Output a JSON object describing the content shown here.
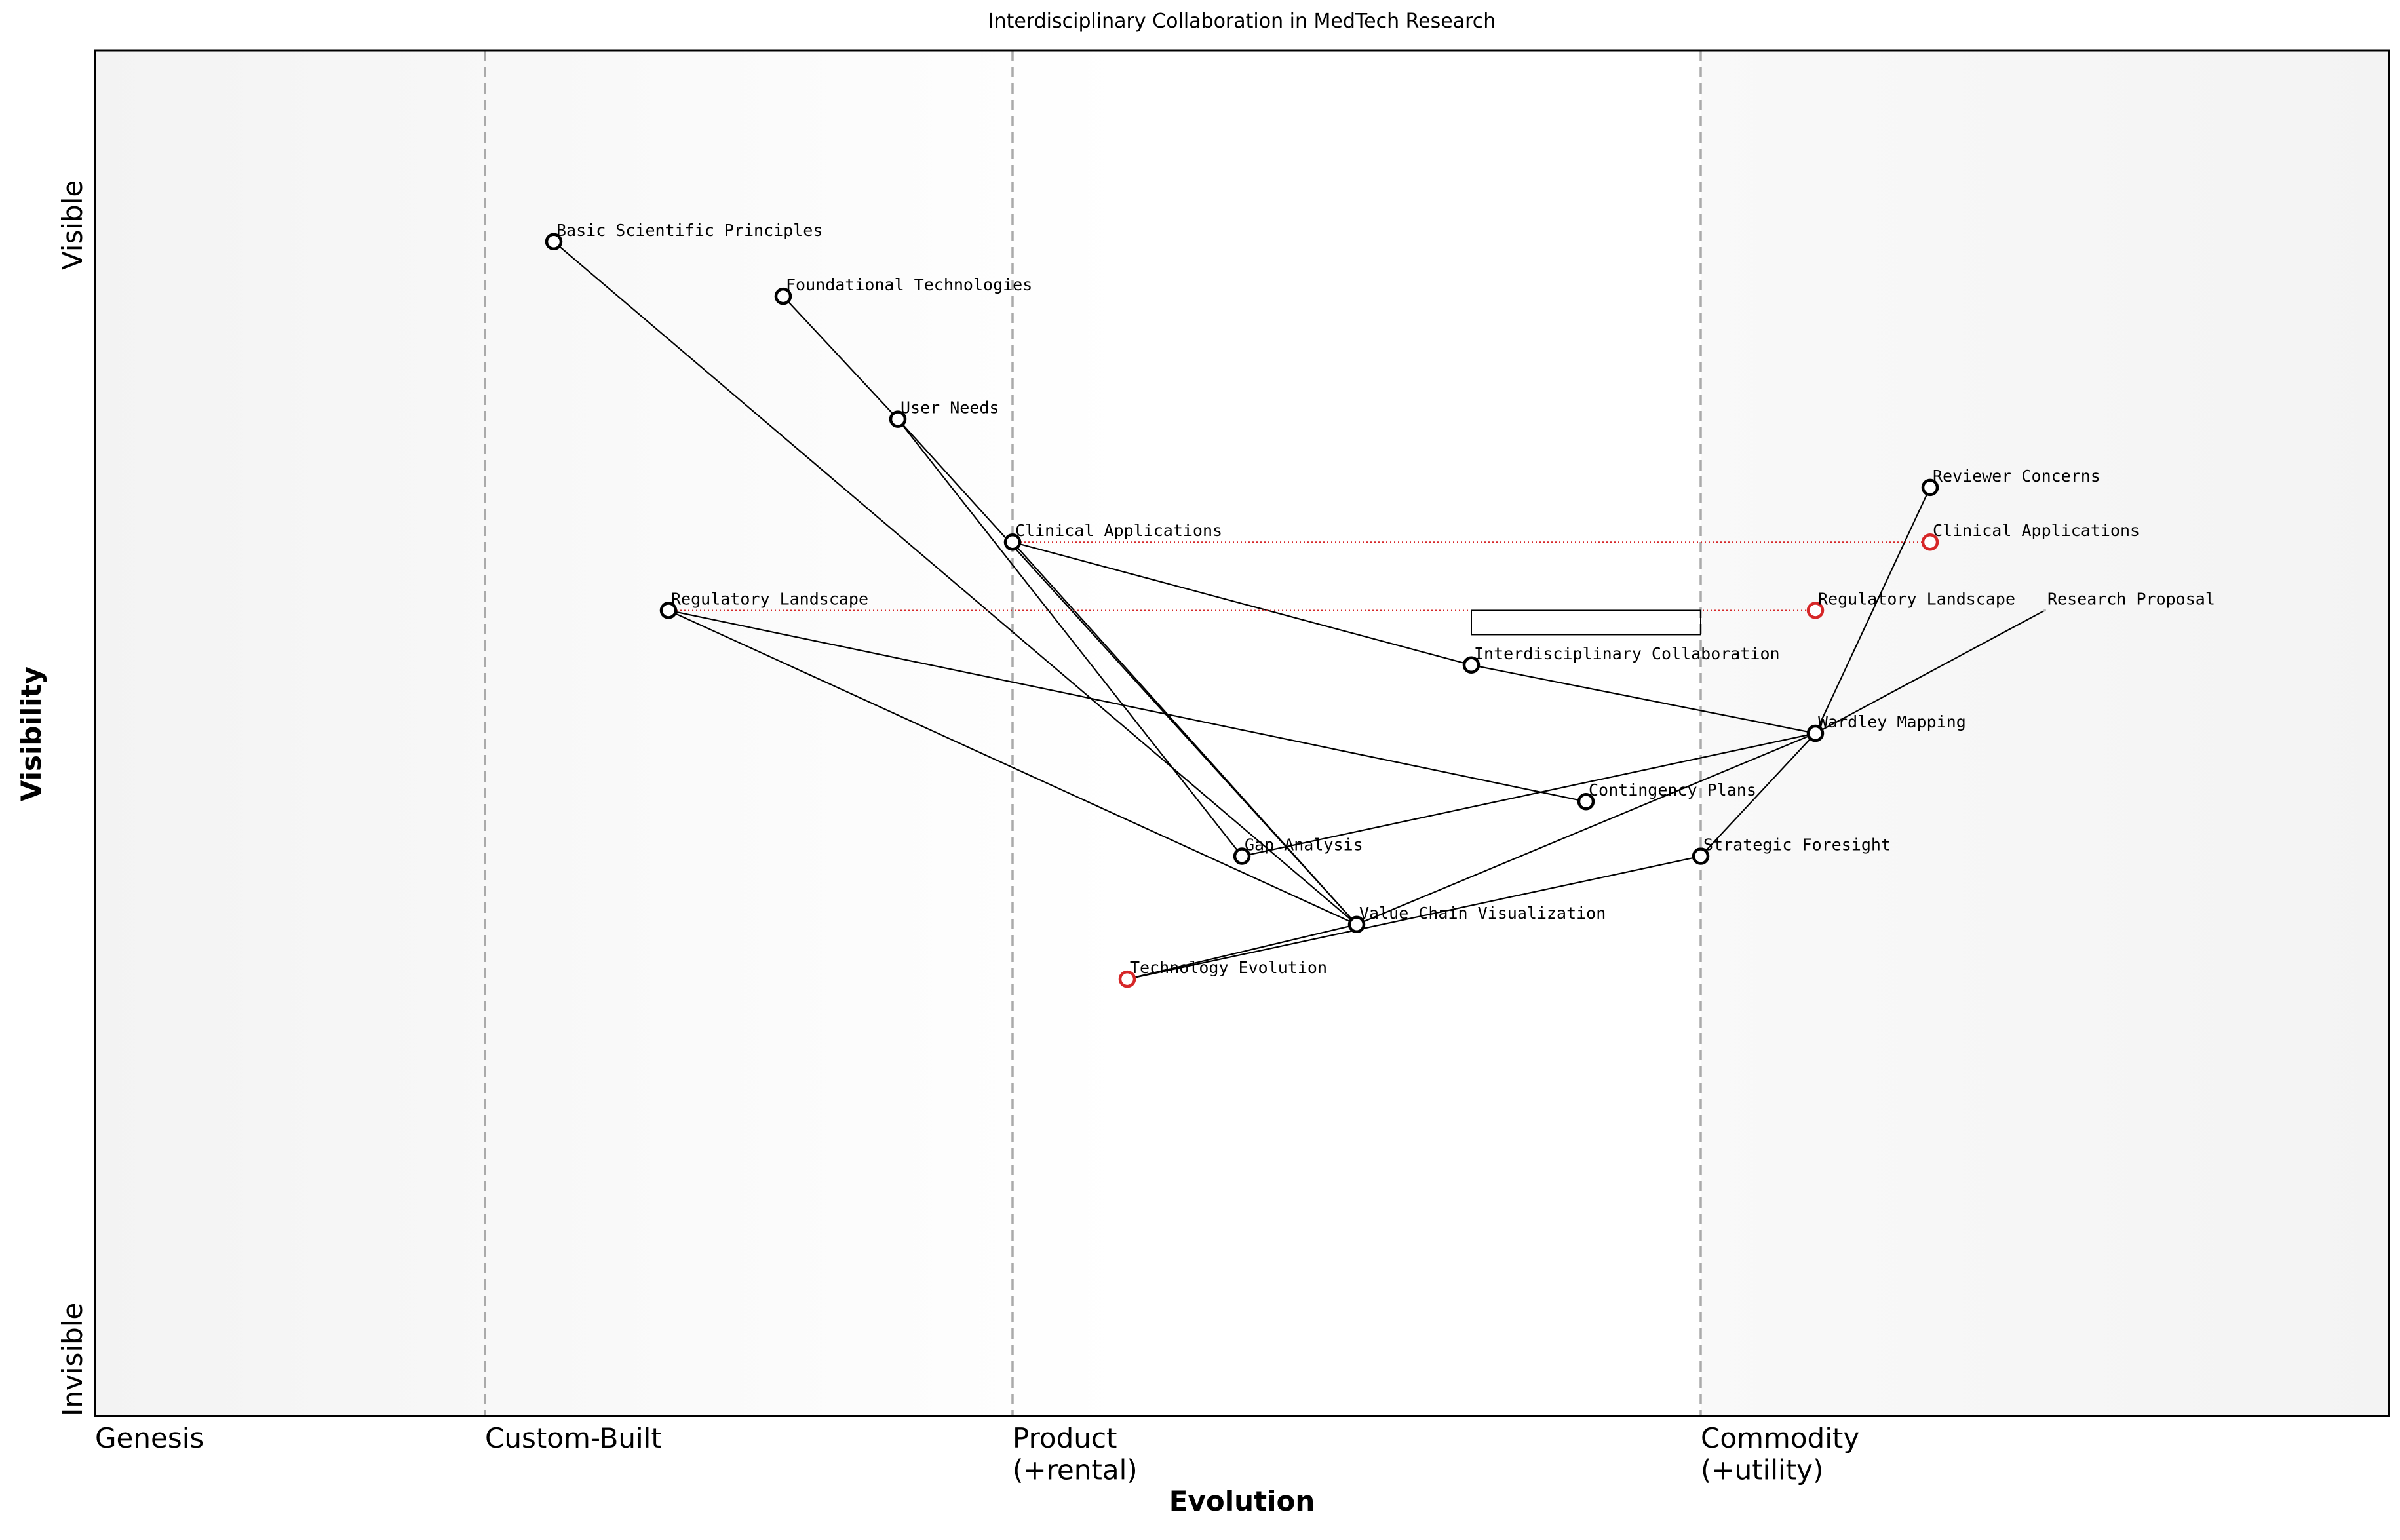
{
  "chart_data": {
    "type": "wardley",
    "title": "Interdisciplinary Collaboration in MedTech Research",
    "xlabel": "Evolution",
    "ylabel": "Visibility",
    "xlim": [
      0,
      1
    ],
    "ylim": [
      0,
      1
    ],
    "y_end_labels": [
      "Invisible",
      "Visible"
    ],
    "stages": [
      {
        "x": 0,
        "label": "Genesis"
      },
      {
        "x": 0.17,
        "label": "Custom-Built"
      },
      {
        "x": 0.4,
        "label": "Product\n(+rental)"
      },
      {
        "x": 0.7,
        "label": "Commodity\n(+utility)"
      }
    ],
    "components": [
      {
        "name": "Basic Scientific Principles",
        "x": 0.2,
        "y": 0.86
      },
      {
        "name": "Foundational Technologies",
        "x": 0.3,
        "y": 0.82
      },
      {
        "name": "User Needs",
        "x": 0.35,
        "y": 0.73
      },
      {
        "name": "Clinical Applications",
        "x": 0.4,
        "y": 0.64
      },
      {
        "name": "Regulatory Landscape",
        "x": 0.25,
        "y": 0.59
      },
      {
        "name": "Interdisciplinary Collaboration",
        "x": 0.6,
        "y": 0.55
      },
      {
        "name": "Wardley Mapping",
        "x": 0.75,
        "y": 0.5
      },
      {
        "name": "Contingency Plans",
        "x": 0.65,
        "y": 0.45
      },
      {
        "name": "Gap Analysis",
        "x": 0.5,
        "y": 0.41
      },
      {
        "name": "Strategic Foresight",
        "x": 0.7,
        "y": 0.41
      },
      {
        "name": "Value Chain Visualization",
        "x": 0.55,
        "y": 0.36
      },
      {
        "name": "Technology Evolution",
        "x": 0.45,
        "y": 0.32,
        "color": "#d62728"
      },
      {
        "name": "Reviewer Concerns",
        "x": 0.8,
        "y": 0.68
      }
    ],
    "anchors": [
      {
        "name": "Research Proposal",
        "x": 0.85,
        "y": 0.59
      }
    ],
    "evolve": [
      {
        "name": "Clinical Applications",
        "x": 0.8,
        "y": 0.64
      },
      {
        "name": "Regulatory Landscape",
        "x": 0.75,
        "y": 0.59
      }
    ],
    "evolve_color": "#d62728",
    "pipeline": {
      "x0": 0.6,
      "x1": 0.7,
      "y": 0.59
    },
    "links": [
      [
        "Basic Scientific Principles",
        "Value Chain Visualization"
      ],
      [
        "Foundational Technologies",
        "User Needs"
      ],
      [
        "User Needs",
        "Gap Analysis"
      ],
      [
        "User Needs",
        "Value Chain Visualization"
      ],
      [
        "Clinical Applications",
        "Value Chain Visualization"
      ],
      [
        "Clinical Applications",
        "Interdisciplinary Collaboration"
      ],
      [
        "Interdisciplinary Collaboration",
        "Wardley Mapping"
      ],
      [
        "Regulatory Landscape",
        "Contingency Plans"
      ],
      [
        "Regulatory Landscape",
        "Value Chain Visualization"
      ],
      [
        "Gap Analysis",
        "Wardley Mapping"
      ],
      [
        "Value Chain Visualization",
        "Wardley Mapping"
      ],
      [
        "Wardley Mapping",
        "Reviewer Concerns"
      ],
      [
        "Wardley Mapping",
        "Strategic Foresight"
      ],
      [
        "Wardley Mapping",
        "Research Proposal"
      ],
      [
        "Strategic Foresight",
        "Technology Evolution"
      ],
      [
        "Value Chain Visualization",
        "Technology Evolution"
      ]
    ]
  }
}
